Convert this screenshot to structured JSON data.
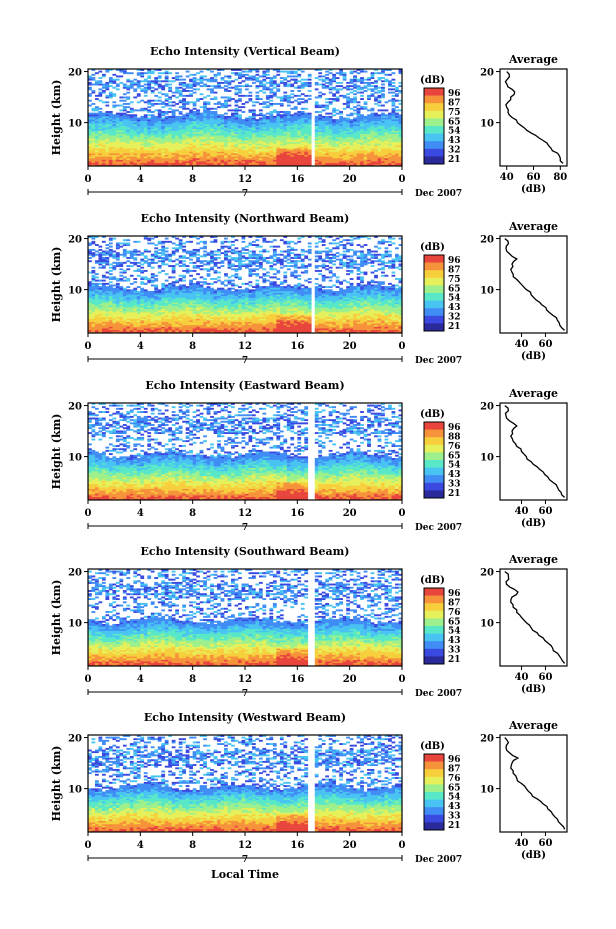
{
  "figure": {
    "xlabel": "Local Time",
    "date_label": "Dec 2007",
    "day_label": "7",
    "colorbar_unit": "(dB)",
    "avg_title": "Average",
    "avg_xlabel": "(dB)"
  },
  "colors": {
    "colormap": [
      "#2a2a9a",
      "#3a4ae0",
      "#3f8df5",
      "#49c4f2",
      "#58e8c8",
      "#9df08b",
      "#e6f05a",
      "#f7cf3d",
      "#f6923a",
      "#e8453d"
    ],
    "gap": "#ffffff",
    "axis": "#000000",
    "profile_line": "#000000"
  },
  "chart_data": [
    {
      "type": "heatmap",
      "title": "Echo Intensity (Vertical Beam)",
      "xlabel": "",
      "ylabel": "Height (km)",
      "x_ticks": [
        "0",
        "4",
        "8",
        "12",
        "16",
        "20",
        "0"
      ],
      "xlim": [
        0,
        24
      ],
      "y_ticks": [
        "10",
        "20"
      ],
      "ylim": [
        1.5,
        20.5
      ],
      "colorbar": {
        "label": "(dB)",
        "ticks": [
          "96",
          "87",
          "75",
          "65",
          "54",
          "43",
          "32",
          "21"
        ]
      },
      "data_gap_hours": [
        17.0,
        17.4
      ],
      "profile": {
        "title": "Average",
        "xlabel": "(dB)",
        "xlim": [
          35,
          85
        ],
        "x_ticks": [
          "40",
          "60",
          "80"
        ],
        "y_ticks": [
          "10",
          "20"
        ],
        "ylim": [
          1.5,
          20.5
        ],
        "heights": [
          2,
          3,
          4,
          5,
          6,
          7,
          8,
          9,
          10,
          11,
          12,
          13,
          14,
          15,
          16,
          17,
          18,
          19,
          20
        ],
        "values": [
          82,
          80,
          78,
          73,
          70,
          64,
          58,
          53,
          48,
          44,
          41,
          40,
          41,
          43,
          46,
          41,
          39,
          42,
          40
        ]
      }
    },
    {
      "type": "heatmap",
      "title": "Echo Intensity (Northward Beam)",
      "xlabel": "",
      "ylabel": "Height (km)",
      "x_ticks": [
        "0",
        "4",
        "8",
        "12",
        "16",
        "20",
        "0"
      ],
      "xlim": [
        0,
        24
      ],
      "y_ticks": [
        "10",
        "20"
      ],
      "ylim": [
        1.5,
        20.5
      ],
      "colorbar": {
        "label": "(dB)",
        "ticks": [
          "96",
          "87",
          "75",
          "65",
          "54",
          "43",
          "32",
          "21"
        ]
      },
      "data_gap_hours": [
        17.0,
        17.4
      ],
      "profile": {
        "title": "Average",
        "xlabel": "(dB)",
        "xlim": [
          22,
          78
        ],
        "x_ticks": [
          "40",
          "60"
        ],
        "y_ticks": [
          "10",
          "20"
        ],
        "ylim": [
          1.5,
          20.5
        ],
        "heights": [
          2,
          3,
          4,
          5,
          6,
          7,
          8,
          9,
          10,
          11,
          12,
          13,
          14,
          15,
          16,
          17,
          18,
          19,
          20
        ],
        "values": [
          76,
          72,
          70,
          66,
          61,
          57,
          52,
          48,
          44,
          40,
          36,
          33,
          31,
          32,
          36,
          30,
          27,
          29,
          26
        ]
      }
    },
    {
      "type": "heatmap",
      "title": "Echo Intensity (Eastward Beam)",
      "xlabel": "",
      "ylabel": "Height (km)",
      "x_ticks": [
        "0",
        "4",
        "8",
        "12",
        "16",
        "20",
        "0"
      ],
      "xlim": [
        0,
        24
      ],
      "y_ticks": [
        "10",
        "20"
      ],
      "ylim": [
        1.5,
        20.5
      ],
      "colorbar": {
        "label": "(dB)",
        "ticks": [
          "96",
          "88",
          "76",
          "65",
          "54",
          "43",
          "33",
          "21"
        ]
      },
      "data_gap_hours": [
        16.9,
        17.3
      ],
      "profile": {
        "title": "Average",
        "xlabel": "(dB)",
        "xlim": [
          22,
          78
        ],
        "x_ticks": [
          "40",
          "60"
        ],
        "y_ticks": [
          "10",
          "20"
        ],
        "ylim": [
          1.5,
          20.5
        ],
        "heights": [
          2,
          3,
          4,
          5,
          6,
          7,
          8,
          9,
          10,
          11,
          12,
          13,
          14,
          15,
          16,
          17,
          18,
          19,
          20
        ],
        "values": [
          76,
          73,
          70,
          66,
          62,
          58,
          53,
          48,
          44,
          40,
          36,
          33,
          31,
          32,
          36,
          30,
          27,
          29,
          26
        ]
      }
    },
    {
      "type": "heatmap",
      "title": "Echo Intensity (Southward Beam)",
      "xlabel": "",
      "ylabel": "Height (km)",
      "x_ticks": [
        "0",
        "4",
        "8",
        "12",
        "16",
        "20",
        "0"
      ],
      "xlim": [
        0,
        24
      ],
      "y_ticks": [
        "10",
        "20"
      ],
      "ylim": [
        1.5,
        20.5
      ],
      "colorbar": {
        "label": "(dB)",
        "ticks": [
          "96",
          "87",
          "76",
          "65",
          "54",
          "43",
          "33",
          "21"
        ]
      },
      "data_gap_hours": [
        16.9,
        17.3
      ],
      "profile": {
        "title": "Average",
        "xlabel": "(dB)",
        "xlim": [
          22,
          78
        ],
        "x_ticks": [
          "40",
          "60"
        ],
        "y_ticks": [
          "10",
          "20"
        ],
        "ylim": [
          1.5,
          20.5
        ],
        "heights": [
          2,
          3,
          4,
          5,
          6,
          7,
          8,
          9,
          10,
          11,
          12,
          13,
          14,
          15,
          16,
          17,
          18,
          19,
          20
        ],
        "values": [
          76,
          73,
          70,
          66,
          62,
          58,
          53,
          48,
          44,
          40,
          36,
          33,
          31,
          32,
          37,
          30,
          27,
          29,
          26
        ]
      }
    },
    {
      "type": "heatmap",
      "title": "Echo Intensity (Westward Beam)",
      "xlabel": "Local Time",
      "ylabel": "Height (km)",
      "x_ticks": [
        "0",
        "4",
        "8",
        "12",
        "16",
        "20",
        "0"
      ],
      "xlim": [
        0,
        24
      ],
      "y_ticks": [
        "10",
        "20"
      ],
      "ylim": [
        1.5,
        20.5
      ],
      "colorbar": {
        "label": "(dB)",
        "ticks": [
          "96",
          "87",
          "76",
          "65",
          "54",
          "43",
          "33",
          "21"
        ]
      },
      "data_gap_hours": [
        16.9,
        17.3
      ],
      "profile": {
        "title": "Average",
        "xlabel": "(dB)",
        "xlim": [
          22,
          78
        ],
        "x_ticks": [
          "40",
          "60"
        ],
        "y_ticks": [
          "10",
          "20"
        ],
        "ylim": [
          1.5,
          20.5
        ],
        "heights": [
          2,
          3,
          4,
          5,
          6,
          7,
          8,
          9,
          10,
          11,
          12,
          13,
          14,
          15,
          16,
          17,
          18,
          19,
          20
        ],
        "values": [
          76,
          73,
          70,
          66,
          62,
          58,
          53,
          48,
          44,
          40,
          36,
          33,
          31,
          32,
          37,
          30,
          27,
          29,
          26
        ]
      }
    }
  ]
}
